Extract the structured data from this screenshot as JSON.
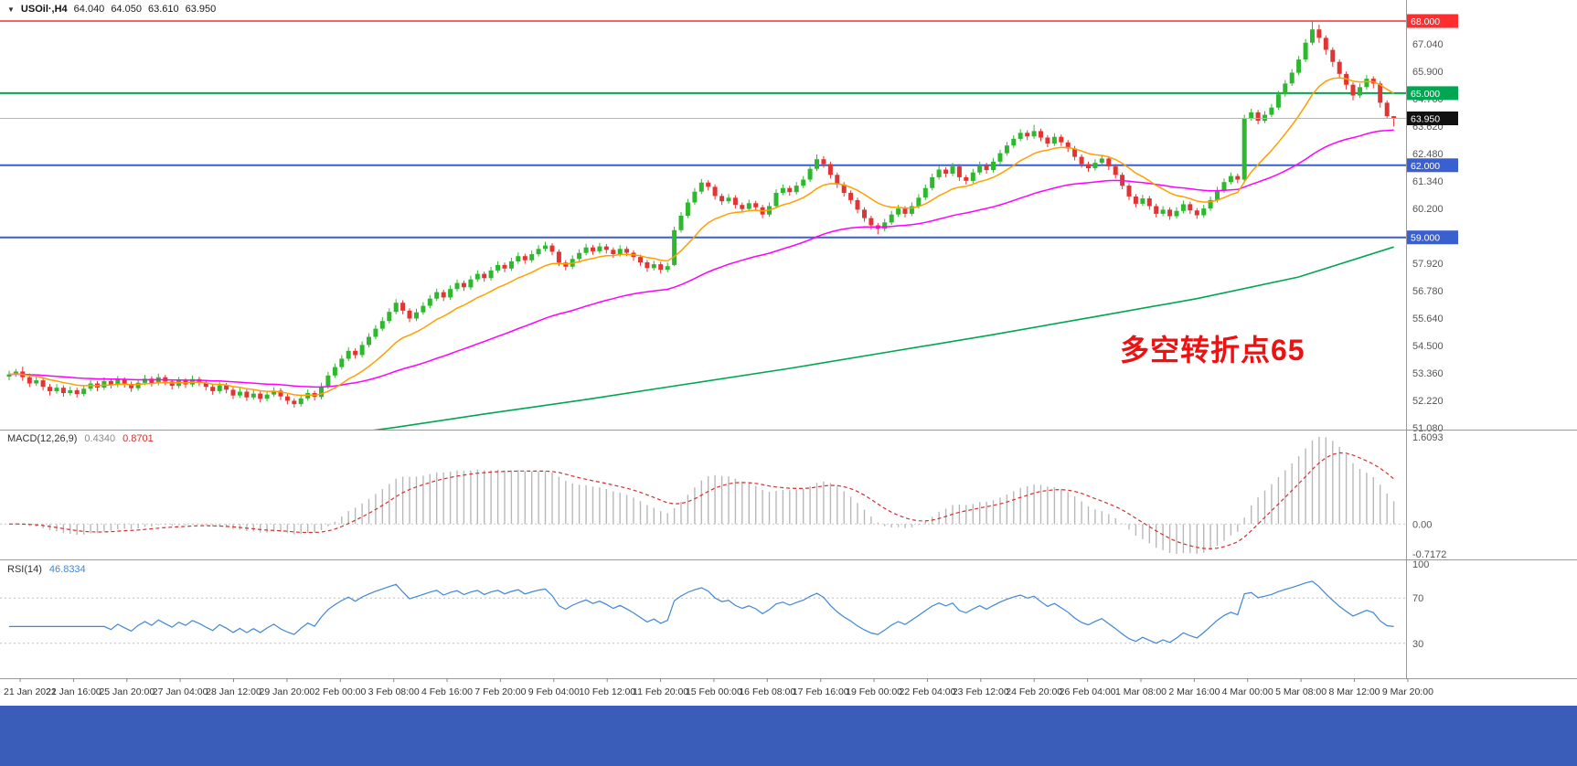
{
  "header": {
    "collapse_icon": "▼",
    "symbol": "USOil·,H4",
    "open": "64.040",
    "high": "64.050",
    "low": "63.610",
    "close": "63.950"
  },
  "footer": {
    "color": "#3a5dba"
  },
  "chart_data": {
    "type": "candlestick",
    "symbol": "USOil",
    "timeframe": "H4",
    "title": "USOil H4 chart with MACD(12,26,9) and RSI(14)",
    "price_axis": {
      "min": 51.0,
      "max": 68.875,
      "ticks": [
        "67.040",
        "65.900",
        "64.760",
        "63.620",
        "62.480",
        "61.340",
        "60.200",
        "57.920",
        "56.780",
        "55.640",
        "54.500",
        "53.360",
        "52.220",
        "51.080"
      ]
    },
    "time_labels": [
      "21 Jan 2021",
      "22 Jan 16:00",
      "25 Jan 20:00",
      "27 Jan 04:00",
      "28 Jan 12:00",
      "29 Jan 20:00",
      "2 Feb 00:00",
      "3 Feb 08:00",
      "4 Feb 16:00",
      "7 Feb 20:00",
      "9 Feb 04:00",
      "10 Feb 12:00",
      "11 Feb 20:00",
      "15 Feb 00:00",
      "16 Feb 08:00",
      "17 Feb 16:00",
      "19 Feb 00:00",
      "22 Feb 04:00",
      "23 Feb 12:00",
      "24 Feb 20:00",
      "26 Feb 04:00",
      "1 Mar 08:00",
      "2 Mar 16:00",
      "4 Mar 00:00",
      "5 Mar 08:00",
      "8 Mar 12:00",
      "9 Mar 20:00"
    ],
    "colors": {
      "up": "#2db82d",
      "down": "#e33434",
      "ma_fast": "#ff9f00",
      "ma_mid": "#ff00ff",
      "ma_slow": "#00a651"
    },
    "ma_periods": {
      "fast": 13,
      "mid": 55
    },
    "ma_slow_points": [
      [
        40,
        50.45
      ],
      [
        57,
        51.1
      ],
      [
        70,
        51.65
      ],
      [
        85,
        52.25
      ],
      [
        100,
        52.9
      ],
      [
        115,
        53.55
      ],
      [
        130,
        54.25
      ],
      [
        145,
        54.95
      ],
      [
        160,
        55.7
      ],
      [
        175,
        56.45
      ],
      [
        190,
        57.35
      ],
      [
        204,
        58.6
      ]
    ],
    "hlines": [
      {
        "price": 68.0,
        "label": "68.000",
        "color": "#ff2d2d",
        "width": 1.4
      },
      {
        "price": 65.0,
        "label": "65.000",
        "color": "#00a651",
        "width": 2
      },
      {
        "price": 62.0,
        "label": "62.000",
        "color": "#3a5fd0",
        "width": 2
      },
      {
        "price": 59.0,
        "label": "59.000",
        "color": "#3a5fd0",
        "width": 2
      }
    ],
    "current_price": {
      "value": 63.95,
      "label": "63.950",
      "badge_color": "#111111",
      "line_color": "#a7b7cf"
    },
    "annotation": {
      "text": "多空转折点65",
      "color": "#ee1111"
    },
    "candles": [
      [
        53.2,
        53.45,
        53.05,
        53.3
      ],
      [
        53.3,
        53.52,
        53.2,
        53.42
      ],
      [
        53.42,
        53.62,
        53.03,
        53.18
      ],
      [
        53.18,
        53.33,
        52.77,
        52.92
      ],
      [
        52.92,
        53.2,
        52.82,
        53.05
      ],
      [
        53.05,
        53.15,
        52.63,
        52.78
      ],
      [
        52.78,
        52.9,
        52.42,
        52.6
      ],
      [
        52.6,
        52.89,
        52.5,
        52.74
      ],
      [
        52.74,
        52.84,
        52.37,
        52.52
      ],
      [
        52.52,
        52.79,
        52.42,
        52.64
      ],
      [
        52.64,
        52.74,
        52.33,
        52.48
      ],
      [
        52.48,
        52.85,
        52.38,
        52.7
      ],
      [
        52.7,
        53.07,
        52.6,
        52.92
      ],
      [
        52.92,
        53.02,
        52.6,
        52.75
      ],
      [
        52.75,
        53.17,
        52.65,
        53.02
      ],
      [
        53.02,
        53.12,
        52.71,
        52.86
      ],
      [
        52.86,
        53.23,
        52.76,
        53.08
      ],
      [
        53.08,
        53.18,
        52.75,
        52.9
      ],
      [
        52.9,
        53.0,
        52.57,
        52.72
      ],
      [
        52.72,
        53.1,
        52.62,
        52.95
      ],
      [
        52.95,
        53.27,
        52.85,
        53.12
      ],
      [
        53.12,
        53.22,
        52.79,
        52.94
      ],
      [
        52.94,
        53.33,
        52.84,
        53.18
      ],
      [
        53.18,
        53.28,
        52.85,
        53.0
      ],
      [
        53.0,
        53.1,
        52.67,
        52.82
      ],
      [
        52.82,
        53.19,
        52.72,
        53.04
      ],
      [
        53.04,
        53.14,
        52.73,
        52.88
      ],
      [
        52.88,
        53.25,
        52.78,
        53.1
      ],
      [
        53.1,
        53.2,
        52.81,
        52.96
      ],
      [
        52.96,
        53.06,
        52.63,
        52.78
      ],
      [
        52.78,
        52.88,
        52.45,
        52.6
      ],
      [
        52.6,
        52.99,
        52.5,
        52.84
      ],
      [
        52.84,
        52.94,
        52.51,
        52.66
      ],
      [
        52.66,
        52.76,
        52.27,
        52.42
      ],
      [
        52.42,
        52.73,
        52.32,
        52.58
      ],
      [
        52.58,
        52.68,
        52.19,
        52.34
      ],
      [
        52.34,
        52.65,
        52.24,
        52.5
      ],
      [
        52.5,
        52.6,
        52.13,
        52.28
      ],
      [
        52.28,
        52.61,
        52.18,
        52.46
      ],
      [
        52.46,
        52.77,
        52.36,
        52.62
      ],
      [
        52.62,
        52.72,
        52.23,
        52.38
      ],
      [
        52.38,
        52.48,
        52.05,
        52.2
      ],
      [
        52.2,
        52.3,
        51.92,
        52.06
      ],
      [
        52.06,
        52.45,
        51.96,
        52.3
      ],
      [
        52.3,
        52.67,
        52.2,
        52.52
      ],
      [
        52.52,
        52.62,
        52.21,
        52.36
      ],
      [
        52.36,
        52.95,
        52.26,
        52.8
      ],
      [
        52.8,
        53.4,
        52.7,
        53.25
      ],
      [
        53.25,
        53.75,
        53.15,
        53.6
      ],
      [
        53.6,
        54.1,
        53.5,
        53.95
      ],
      [
        53.95,
        54.43,
        53.85,
        54.28
      ],
      [
        54.28,
        54.38,
        53.95,
        54.1
      ],
      [
        54.1,
        54.67,
        54.0,
        54.52
      ],
      [
        54.52,
        55.01,
        54.42,
        54.86
      ],
      [
        54.86,
        55.35,
        54.76,
        55.2
      ],
      [
        55.2,
        55.67,
        55.1,
        55.52
      ],
      [
        55.52,
        56.05,
        55.42,
        55.9
      ],
      [
        55.9,
        56.43,
        55.8,
        56.28
      ],
      [
        56.28,
        56.38,
        55.8,
        55.95
      ],
      [
        55.95,
        56.05,
        55.47,
        55.62
      ],
      [
        55.62,
        56.03,
        55.52,
        55.88
      ],
      [
        55.88,
        56.3,
        55.78,
        56.15
      ],
      [
        56.15,
        56.6,
        56.05,
        56.45
      ],
      [
        56.45,
        56.87,
        56.35,
        56.72
      ],
      [
        56.72,
        56.82,
        56.35,
        56.5
      ],
      [
        56.5,
        57.0,
        56.4,
        56.85
      ],
      [
        56.85,
        57.25,
        56.75,
        57.1
      ],
      [
        57.1,
        57.2,
        56.77,
        56.92
      ],
      [
        56.92,
        57.4,
        56.82,
        57.25
      ],
      [
        57.25,
        57.63,
        57.15,
        57.48
      ],
      [
        57.48,
        57.58,
        57.15,
        57.3
      ],
      [
        57.3,
        57.77,
        57.2,
        57.62
      ],
      [
        57.62,
        58.0,
        57.52,
        57.85
      ],
      [
        57.85,
        57.95,
        57.55,
        57.7
      ],
      [
        57.7,
        58.15,
        57.6,
        58.0
      ],
      [
        58.0,
        58.37,
        57.9,
        58.22
      ],
      [
        58.22,
        58.32,
        57.9,
        58.05
      ],
      [
        58.05,
        58.45,
        57.95,
        58.3
      ],
      [
        58.3,
        58.67,
        58.2,
        58.52
      ],
      [
        58.52,
        58.81,
        58.42,
        58.66
      ],
      [
        58.66,
        58.76,
        58.25,
        58.4
      ],
      [
        58.4,
        58.5,
        57.8,
        57.95
      ],
      [
        57.95,
        58.05,
        57.63,
        57.78
      ],
      [
        57.78,
        58.25,
        57.68,
        58.1
      ],
      [
        58.1,
        58.5,
        58.0,
        58.35
      ],
      [
        58.35,
        58.73,
        58.25,
        58.58
      ],
      [
        58.58,
        58.68,
        58.27,
        58.42
      ],
      [
        58.42,
        58.77,
        58.32,
        58.62
      ],
      [
        58.62,
        58.72,
        58.33,
        58.48
      ],
      [
        58.48,
        58.58,
        58.15,
        58.3
      ],
      [
        58.3,
        58.67,
        58.2,
        58.52
      ],
      [
        58.52,
        58.62,
        58.21,
        58.36
      ],
      [
        58.36,
        58.46,
        58.03,
        58.18
      ],
      [
        58.18,
        58.28,
        57.81,
        57.96
      ],
      [
        57.96,
        58.06,
        57.57,
        57.72
      ],
      [
        57.72,
        58.03,
        57.62,
        57.88
      ],
      [
        57.88,
        57.98,
        57.5,
        57.65
      ],
      [
        57.65,
        57.95,
        57.55,
        57.8
      ],
      [
        57.85,
        59.45,
        57.8,
        59.3
      ],
      [
        59.3,
        60.05,
        59.2,
        59.9
      ],
      [
        59.9,
        60.6,
        59.8,
        60.45
      ],
      [
        60.45,
        61.05,
        60.35,
        60.9
      ],
      [
        60.9,
        61.43,
        60.8,
        61.28
      ],
      [
        61.28,
        61.38,
        60.95,
        61.1
      ],
      [
        61.1,
        61.2,
        60.57,
        60.72
      ],
      [
        60.72,
        60.82,
        60.35,
        60.5
      ],
      [
        60.5,
        60.8,
        60.4,
        60.65
      ],
      [
        60.65,
        60.75,
        60.2,
        60.35
      ],
      [
        60.35,
        60.45,
        60.03,
        60.18
      ],
      [
        60.18,
        60.57,
        60.08,
        60.42
      ],
      [
        60.42,
        60.52,
        60.1,
        60.25
      ],
      [
        60.25,
        60.35,
        59.8,
        59.95
      ],
      [
        59.95,
        60.45,
        59.85,
        60.3
      ],
      [
        60.3,
        61.0,
        60.2,
        60.85
      ],
      [
        60.85,
        61.2,
        60.75,
        61.05
      ],
      [
        61.05,
        61.15,
        60.73,
        60.88
      ],
      [
        60.88,
        61.3,
        60.78,
        61.15
      ],
      [
        61.15,
        61.55,
        61.05,
        61.4
      ],
      [
        61.4,
        62.0,
        61.3,
        61.85
      ],
      [
        61.85,
        62.45,
        61.75,
        62.25
      ],
      [
        62.25,
        62.38,
        61.9,
        62.05
      ],
      [
        62.05,
        62.15,
        61.45,
        61.6
      ],
      [
        61.6,
        61.7,
        61.05,
        61.2
      ],
      [
        61.2,
        61.3,
        60.7,
        60.85
      ],
      [
        60.85,
        60.95,
        60.4,
        60.55
      ],
      [
        60.55,
        60.65,
        60.0,
        60.15
      ],
      [
        60.15,
        60.25,
        59.65,
        59.8
      ],
      [
        59.8,
        59.9,
        59.33,
        59.5
      ],
      [
        59.5,
        59.6,
        59.12,
        59.35
      ],
      [
        59.35,
        59.77,
        59.25,
        59.62
      ],
      [
        59.62,
        60.1,
        59.52,
        59.95
      ],
      [
        59.95,
        60.35,
        59.85,
        60.2
      ],
      [
        60.2,
        60.3,
        59.83,
        59.98
      ],
      [
        59.98,
        60.45,
        59.88,
        60.3
      ],
      [
        60.3,
        60.8,
        60.2,
        60.65
      ],
      [
        60.65,
        61.2,
        60.55,
        61.05
      ],
      [
        61.05,
        61.65,
        60.95,
        61.5
      ],
      [
        61.5,
        61.97,
        61.4,
        61.82
      ],
      [
        61.82,
        61.92,
        61.5,
        61.65
      ],
      [
        61.65,
        62.1,
        61.55,
        61.95
      ],
      [
        61.95,
        62.05,
        61.35,
        61.5
      ],
      [
        61.5,
        61.6,
        61.2,
        61.35
      ],
      [
        61.35,
        61.85,
        61.25,
        61.7
      ],
      [
        61.7,
        62.15,
        61.6,
        62.0
      ],
      [
        62.0,
        62.1,
        61.65,
        61.8
      ],
      [
        61.8,
        62.3,
        61.7,
        62.15
      ],
      [
        62.15,
        62.65,
        62.05,
        62.5
      ],
      [
        62.5,
        62.97,
        62.4,
        62.82
      ],
      [
        62.82,
        63.25,
        62.72,
        63.1
      ],
      [
        63.1,
        63.5,
        63.0,
        63.35
      ],
      [
        63.35,
        63.45,
        63.05,
        63.2
      ],
      [
        63.2,
        63.68,
        63.1,
        63.42
      ],
      [
        63.42,
        63.52,
        63.0,
        63.15
      ],
      [
        63.15,
        63.25,
        62.75,
        62.9
      ],
      [
        62.9,
        63.33,
        62.8,
        63.18
      ],
      [
        63.18,
        63.28,
        62.8,
        62.95
      ],
      [
        62.95,
        63.05,
        62.55,
        62.7
      ],
      [
        62.7,
        62.8,
        62.2,
        62.35
      ],
      [
        62.35,
        62.45,
        61.9,
        62.05
      ],
      [
        62.05,
        62.15,
        61.73,
        61.88
      ],
      [
        61.88,
        62.25,
        61.78,
        62.1
      ],
      [
        62.1,
        62.43,
        62.0,
        62.28
      ],
      [
        62.28,
        62.38,
        61.8,
        61.95
      ],
      [
        61.95,
        62.05,
        61.45,
        61.6
      ],
      [
        61.6,
        61.7,
        61.0,
        61.15
      ],
      [
        61.15,
        61.25,
        60.55,
        60.7
      ],
      [
        60.7,
        60.8,
        60.25,
        60.4
      ],
      [
        60.4,
        60.77,
        60.3,
        60.62
      ],
      [
        60.62,
        60.72,
        60.15,
        60.3
      ],
      [
        60.3,
        60.4,
        59.83,
        59.98
      ],
      [
        59.98,
        60.3,
        59.88,
        60.15
      ],
      [
        60.15,
        60.25,
        59.73,
        59.88
      ],
      [
        59.88,
        60.25,
        59.78,
        60.1
      ],
      [
        60.1,
        60.53,
        60.0,
        60.38
      ],
      [
        60.38,
        60.48,
        59.97,
        60.12
      ],
      [
        60.12,
        60.22,
        59.77,
        59.92
      ],
      [
        59.92,
        60.35,
        59.82,
        60.2
      ],
      [
        60.2,
        60.7,
        60.1,
        60.55
      ],
      [
        60.55,
        61.1,
        60.45,
        60.95
      ],
      [
        60.95,
        61.45,
        60.85,
        61.3
      ],
      [
        61.3,
        61.7,
        61.2,
        61.55
      ],
      [
        61.55,
        61.65,
        61.25,
        61.4
      ],
      [
        61.4,
        64.1,
        61.3,
        63.95
      ],
      [
        63.95,
        64.35,
        63.85,
        64.2
      ],
      [
        64.2,
        64.3,
        63.7,
        63.85
      ],
      [
        63.85,
        64.25,
        63.75,
        64.1
      ],
      [
        64.1,
        64.55,
        64.0,
        64.4
      ],
      [
        64.4,
        65.1,
        64.3,
        64.95
      ],
      [
        64.95,
        65.55,
        64.85,
        65.4
      ],
      [
        65.4,
        66.0,
        65.3,
        65.85
      ],
      [
        65.85,
        66.55,
        65.75,
        66.4
      ],
      [
        66.4,
        67.25,
        66.3,
        67.1
      ],
      [
        67.1,
        67.98,
        67.0,
        67.65
      ],
      [
        67.65,
        67.85,
        67.1,
        67.3
      ],
      [
        67.3,
        67.4,
        66.6,
        66.8
      ],
      [
        66.8,
        66.9,
        66.1,
        66.3
      ],
      [
        66.3,
        66.4,
        65.6,
        65.8
      ],
      [
        65.8,
        65.9,
        65.15,
        65.35
      ],
      [
        65.35,
        65.45,
        64.7,
        64.9
      ],
      [
        64.9,
        65.4,
        64.8,
        65.25
      ],
      [
        65.25,
        65.75,
        65.15,
        65.6
      ],
      [
        65.6,
        65.7,
        65.2,
        65.4
      ],
      [
        65.4,
        65.5,
        64.4,
        64.6
      ],
      [
        64.6,
        64.7,
        63.95,
        64.04
      ],
      [
        64.04,
        64.05,
        63.61,
        63.95
      ]
    ],
    "indicators": {
      "macd": {
        "name": "MACD(12,26,9)",
        "value_main": "0.4340",
        "value_signal": "0.8701",
        "fast": 12,
        "slow": 26,
        "signal": 9,
        "axis_labels": [
          "1.6093",
          "0.00",
          "-0.7172"
        ],
        "colors": {
          "main": "#8a8a8a",
          "signal": "#d03030",
          "histogram": "#b8b8b8"
        }
      },
      "rsi": {
        "name": "RSI(14)",
        "value": "46.8334",
        "period": 14,
        "levels": [
          100,
          70,
          30
        ],
        "level_labels": [
          "100",
          "70",
          "30"
        ],
        "color": "#3e86d8",
        "level_color": "#c0c0c0"
      }
    }
  }
}
